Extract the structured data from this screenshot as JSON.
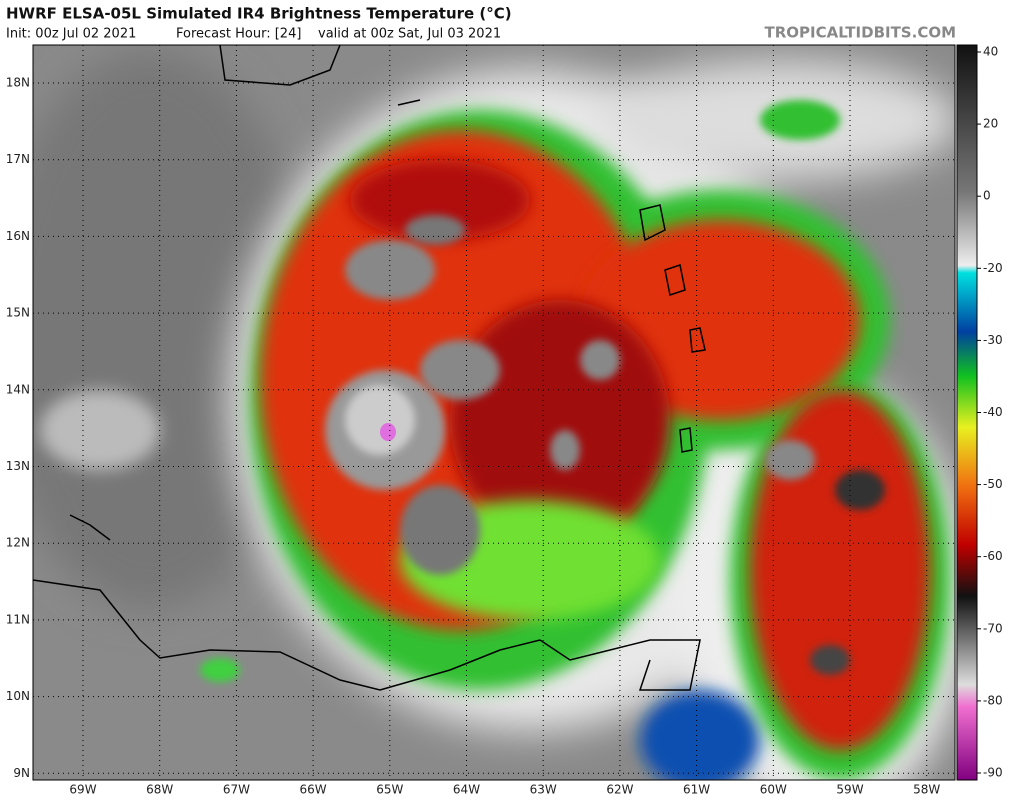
{
  "header": {
    "title": "HWRF ELSA-05L Simulated IR4 Brightness Temperature (°C)",
    "init": "Init: 00z Jul 02 2021",
    "forecast_hour": "Forecast Hour: [24]",
    "valid": "valid at 00z Sat, Jul 03 2021",
    "source": "TROPICALTIDBITS.COM"
  },
  "map": {
    "lat_labels": [
      "18N",
      "17N",
      "16N",
      "15N",
      "14N",
      "13N",
      "12N",
      "11N",
      "10N",
      "9N"
    ],
    "lon_labels": [
      "69W",
      "68W",
      "67W",
      "66W",
      "65W",
      "64W",
      "63W",
      "62W",
      "61W",
      "60W",
      "59W",
      "58W"
    ]
  },
  "colorbar": {
    "labels": [
      40,
      20,
      0,
      -20,
      -30,
      -40,
      -50,
      -60,
      -70,
      -80,
      -90
    ]
  }
}
